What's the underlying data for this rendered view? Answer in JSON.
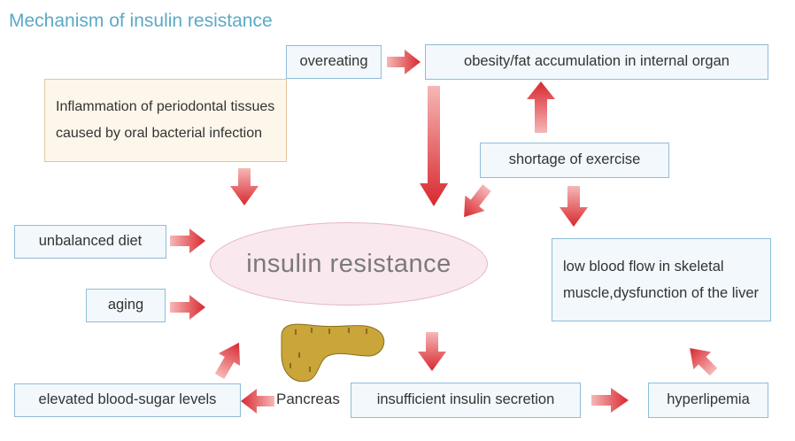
{
  "title": "Mechanism of insulin resistance",
  "nodes": {
    "overeating": "overeating",
    "obesity": "obesity/fat accumulation in internal organ",
    "inflammation": "Inflammation of periodontal tissues caused by oral bacterial infection",
    "shortage_exercise": "shortage of exercise",
    "unbalanced_diet": "unbalanced diet",
    "aging": "aging",
    "insulin_resistance": "insulin resistance",
    "low_blood_flow": "low blood flow in skeletal muscle,dysfunction of the liver",
    "pancreas": "Pancreas",
    "elevated_sugar": "elevated blood-sugar levels",
    "insufficient_secretion": "insufficient insulin secretion",
    "hyperlipemia": "hyperlipemia"
  },
  "colors": {
    "title": "#5ba9c6",
    "box_fill": "#f2f8fc",
    "box_border": "#8fbcd9",
    "note_fill": "#fdf6ea",
    "note_border": "#e2c79c",
    "ellipse_fill": "#f9e8ee",
    "arrow": "#d8282e",
    "pancreas": "#c9a53a"
  }
}
